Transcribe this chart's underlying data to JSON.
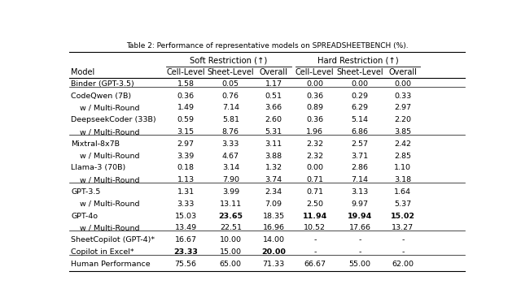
{
  "title": "Table 2: Performance of representative models on SPREADSHEETBENCH (%).",
  "col_headers_level2": [
    "Model",
    "Cell-Level",
    "Sheet-Level",
    "Overall",
    "Cell-Level",
    "Sheet-Level",
    "Overall"
  ],
  "rows": [
    {
      "model": "Binder (GPT-3.5)",
      "indent": false,
      "values": [
        "1.58",
        "0.05",
        "1.17",
        "0.00",
        "0.00",
        "0.00"
      ],
      "bold": [
        false,
        false,
        false,
        false,
        false,
        false
      ],
      "group_top": true
    },
    {
      "model": "CodeQwen (7B)",
      "indent": false,
      "values": [
        "0.36",
        "0.76",
        "0.51",
        "0.36",
        "0.29",
        "0.33"
      ],
      "bold": [
        false,
        false,
        false,
        false,
        false,
        false
      ],
      "group_top": true
    },
    {
      "model": "w / Multi-Round",
      "indent": true,
      "values": [
        "1.49",
        "7.14",
        "3.66",
        "0.89",
        "6.29",
        "2.97"
      ],
      "bold": [
        false,
        false,
        false,
        false,
        false,
        false
      ],
      "group_top": false
    },
    {
      "model": "DeepseekCoder (33B)",
      "indent": false,
      "values": [
        "0.59",
        "5.81",
        "2.60",
        "0.36",
        "5.14",
        "2.20"
      ],
      "bold": [
        false,
        false,
        false,
        false,
        false,
        false
      ],
      "group_top": false
    },
    {
      "model": "w / Multi-Round",
      "indent": true,
      "values": [
        "3.15",
        "8.76",
        "5.31",
        "1.96",
        "6.86",
        "3.85"
      ],
      "bold": [
        false,
        false,
        false,
        false,
        false,
        false
      ],
      "group_top": false
    },
    {
      "model": "Mixtral-8x7B",
      "indent": false,
      "values": [
        "2.97",
        "3.33",
        "3.11",
        "2.32",
        "2.57",
        "2.42"
      ],
      "bold": [
        false,
        false,
        false,
        false,
        false,
        false
      ],
      "group_top": true
    },
    {
      "model": "w / Multi-Round",
      "indent": true,
      "values": [
        "3.39",
        "4.67",
        "3.88",
        "2.32",
        "3.71",
        "2.85"
      ],
      "bold": [
        false,
        false,
        false,
        false,
        false,
        false
      ],
      "group_top": false
    },
    {
      "model": "Llama-3 (70B)",
      "indent": false,
      "values": [
        "0.18",
        "3.14",
        "1.32",
        "0.00",
        "2.86",
        "1.10"
      ],
      "bold": [
        false,
        false,
        false,
        false,
        false,
        false
      ],
      "group_top": false
    },
    {
      "model": "w / Multi-Round",
      "indent": true,
      "values": [
        "1.13",
        "7.90",
        "3.74",
        "0.71",
        "7.14",
        "3.18"
      ],
      "bold": [
        false,
        false,
        false,
        false,
        false,
        false
      ],
      "group_top": false
    },
    {
      "model": "GPT-3.5",
      "indent": false,
      "values": [
        "1.31",
        "3.99",
        "2.34",
        "0.71",
        "3.13",
        "1.64"
      ],
      "bold": [
        false,
        false,
        false,
        false,
        false,
        false
      ],
      "group_top": true
    },
    {
      "model": "w / Multi-Round",
      "indent": true,
      "values": [
        "3.33",
        "13.11",
        "7.09",
        "2.50",
        "9.97",
        "5.37"
      ],
      "bold": [
        false,
        false,
        false,
        false,
        false,
        false
      ],
      "group_top": false
    },
    {
      "model": "GPT-4o",
      "indent": false,
      "values": [
        "15.03",
        "23.65",
        "18.35",
        "11.94",
        "19.94",
        "15.02"
      ],
      "bold": [
        false,
        true,
        false,
        true,
        true,
        true
      ],
      "group_top": false
    },
    {
      "model": "w / Multi-Round",
      "indent": true,
      "values": [
        "13.49",
        "22.51",
        "16.96",
        "10.52",
        "17.66",
        "13.27"
      ],
      "bold": [
        false,
        false,
        false,
        false,
        false,
        false
      ],
      "group_top": false
    },
    {
      "model": "SheetCopilot (GPT-4)*",
      "indent": false,
      "values": [
        "16.67",
        "10.00",
        "14.00",
        "-",
        "-",
        "-"
      ],
      "bold": [
        false,
        false,
        false,
        false,
        false,
        false
      ],
      "group_top": true
    },
    {
      "model": "Copilot in Excel*",
      "indent": false,
      "values": [
        "23.33",
        "15.00",
        "20.00",
        "-",
        "-",
        "-"
      ],
      "bold": [
        true,
        false,
        true,
        false,
        false,
        false
      ],
      "group_top": false
    },
    {
      "model": "Human Performance",
      "indent": false,
      "values": [
        "75.56",
        "65.00",
        "71.33",
        "66.67",
        "55.00",
        "62.00"
      ],
      "bold": [
        false,
        false,
        false,
        false,
        false,
        false
      ],
      "group_top": true
    }
  ],
  "background_color": "#ffffff",
  "font_color": "#000000"
}
